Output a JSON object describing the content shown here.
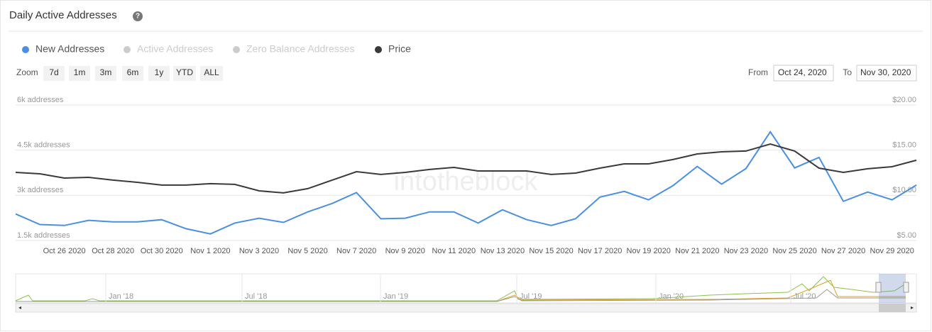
{
  "header": {
    "title": "Daily Active Addresses",
    "help": "?"
  },
  "zoom": {
    "label": "Zoom",
    "buttons": [
      "7d",
      "1m",
      "3m",
      "6m",
      "1y",
      "YTD",
      "ALL"
    ]
  },
  "range": {
    "from_label": "From",
    "from": "Oct 24, 2020",
    "to_label": "To",
    "to": "Nov 30, 2020"
  },
  "chart_data": {
    "type": "line",
    "watermark": "intotheblock",
    "categories": [
      null,
      null,
      "Oct 26 2020",
      null,
      "Oct 28 2020",
      null,
      "Oct 30 2020",
      null,
      "Nov 1 2020",
      null,
      "Nov 3 2020",
      null,
      "Nov 5 2020",
      null,
      "Nov 7 2020",
      null,
      "Nov 9 2020",
      null,
      "Nov 11 2020",
      null,
      "Nov 13 2020",
      null,
      "Nov 15 2020",
      null,
      "Nov 17 2020",
      null,
      "Nov 19 2020",
      null,
      "Nov 21 2020",
      null,
      "Nov 23 2020",
      null,
      "Nov 25 2020",
      null,
      "Nov 27 2020",
      null,
      "Nov 29 2020",
      null
    ],
    "series": [
      {
        "name": "New Addresses",
        "color": "#4a90e2",
        "values": [
          2380,
          2030,
          2000,
          2170,
          2120,
          2120,
          2190,
          1890,
          1720,
          2080,
          2240,
          2100,
          2450,
          2730,
          3090,
          2220,
          2240,
          2450,
          2450,
          2080,
          2520,
          2190,
          2000,
          2220,
          2940,
          3130,
          2850,
          3320,
          3960,
          3370,
          3890,
          5110,
          3910,
          4260,
          2800,
          3110,
          2850,
          3340
        ]
      },
      {
        "name": "Price",
        "color": "#3a3a3a",
        "axis": "y2",
        "values": [
          12.54,
          12.38,
          11.91,
          11.99,
          11.68,
          11.44,
          11.13,
          11.13,
          11.29,
          11.21,
          10.5,
          10.27,
          10.74,
          11.68,
          12.62,
          12.31,
          12.54,
          12.86,
          13.09,
          12.7,
          12.7,
          12.7,
          12.31,
          12.46,
          13.01,
          13.48,
          13.48,
          13.96,
          14.58,
          14.82,
          14.9,
          15.68,
          14.9,
          13.01,
          12.54,
          12.94,
          13.17,
          13.88
        ]
      }
    ],
    "hidden_series": [
      {
        "name": "Active Addresses",
        "color": "#cccccc"
      },
      {
        "name": "Zero Balance Addresses",
        "color": "#cccccc"
      }
    ],
    "ylim": [
      1500,
      6000
    ],
    "yticks": [
      {
        "value": 1500,
        "label": "1.5k addresses"
      },
      {
        "value": 3000,
        "label": "3k addresses"
      },
      {
        "value": 4500,
        "label": "4.5k addresses"
      },
      {
        "value": 6000,
        "label": "6k addresses"
      }
    ],
    "y2lim": [
      5,
      20
    ],
    "y2ticks": [
      {
        "value": 5,
        "label": "$5.00"
      },
      {
        "value": 10,
        "label": "$10.00"
      },
      {
        "value": 15,
        "label": "$15.00"
      },
      {
        "value": 20,
        "label": "$20.00"
      }
    ],
    "grid": true
  },
  "navigator": {
    "labels": [
      "Jan '18",
      "Jul '18",
      "Jan '19",
      "Jul '19",
      "Jan '20",
      "Jul '20"
    ]
  }
}
